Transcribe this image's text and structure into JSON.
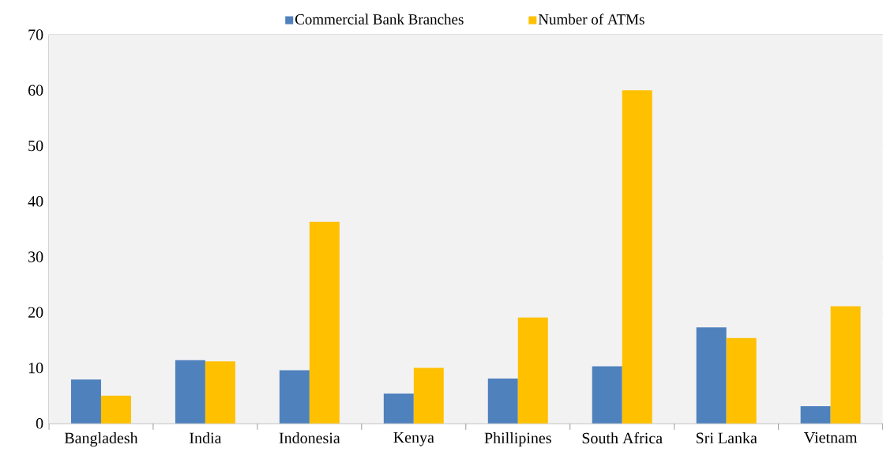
{
  "chart_data": {
    "type": "bar",
    "categories": [
      "Bangladesh",
      "India",
      "Indonesia",
      "Kenya",
      "Phillipines",
      "South Africa",
      "Sri Lanka",
      "Vietnam"
    ],
    "series": [
      {
        "name": "Commercial Bank Branches",
        "color": "#4f81bd",
        "values": [
          7.9,
          11.4,
          9.6,
          5.4,
          8.1,
          10.3,
          17.3,
          3.1
        ]
      },
      {
        "name": "Number of ATMs",
        "color": "#ffc000",
        "values": [
          5.0,
          11.2,
          36.3,
          10.0,
          19.1,
          60.0,
          15.4,
          21.1
        ]
      }
    ],
    "ylim": [
      0,
      70
    ],
    "yticks": [
      0,
      10,
      20,
      30,
      40,
      50,
      60,
      70
    ],
    "grid": "y",
    "legend": "top"
  }
}
